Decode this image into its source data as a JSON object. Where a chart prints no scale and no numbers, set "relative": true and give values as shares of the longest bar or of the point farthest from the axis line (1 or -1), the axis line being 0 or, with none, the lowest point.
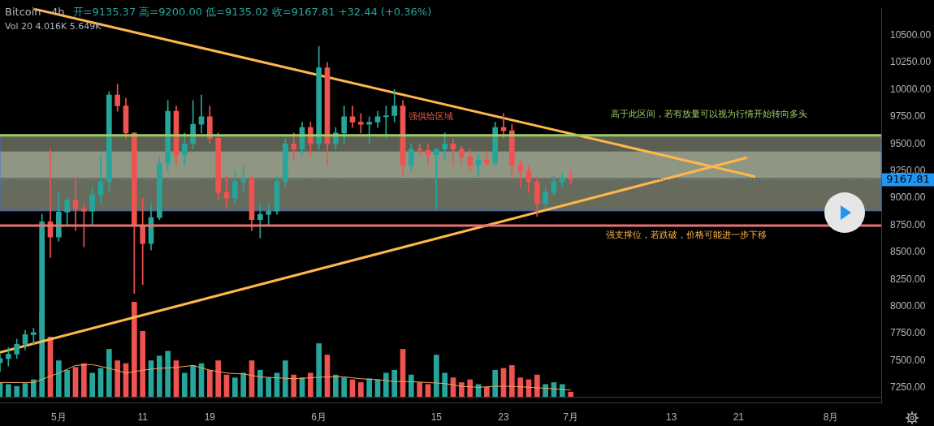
{
  "chart_data": [
    {
      "type": "candlestick",
      "title": "Bitcoin · 4h",
      "subtitle": "开=9135.37 高=9200.00 低=9135.02 收=9167.81 +32.44 (+0.36%)",
      "annotations": [
        "强供给区域",
        "高于此区间，若有放量可以视为行情开始转向多头",
        "强支撑位，若跌破，价格可能进一步下移"
      ],
      "x": [
        "--04-24",
        "--04-25",
        "--04-26",
        "--04-27",
        "--04-28",
        "--04-29",
        "--04-30",
        "--05-01",
        "--05-02",
        "--05-03",
        "--05-04",
        "--05-05",
        "--05-06",
        "--05-07",
        "--05-08",
        "--05-09",
        "--05-10",
        "--05-11",
        "--05-12",
        "--05-13",
        "--05-14",
        "--05-15",
        "--05-16",
        "--05-17",
        "--05-18",
        "--05-19",
        "--05-20",
        "--05-21",
        "--05-22",
        "--05-23",
        "--05-24",
        "--05-25",
        "--05-26",
        "--05-27",
        "--05-28",
        "--05-29",
        "--05-30",
        "--05-31",
        "--06-01",
        "--06-02",
        "--06-03",
        "--06-04",
        "--06-05",
        "--06-06",
        "--06-07",
        "--06-08",
        "--06-09",
        "--06-10",
        "--06-11",
        "--06-12",
        "--06-13",
        "--06-14",
        "--06-15",
        "--06-16",
        "--06-17",
        "--06-18",
        "--06-19",
        "--06-20",
        "--06-21",
        "--06-22",
        "--06-23",
        "--06-24",
        "--06-25",
        "--06-26",
        "--06-27",
        "--06-28",
        "--06-29",
        "--06-30",
        "--07-01"
      ],
      "series": [
        {
          "ohlc": [
            [
              7480,
              7560,
              7400,
              7520
            ],
            [
              7520,
              7620,
              7450,
              7560
            ],
            [
              7560,
              7700,
              7520,
              7650
            ],
            [
              7650,
              7780,
              7600,
              7740
            ],
            [
              7740,
              7800,
              7650,
              7760
            ],
            [
              7760,
              8850,
              7720,
              8780
            ],
            [
              8780,
              9450,
              8450,
              8640
            ],
            [
              8640,
              9050,
              8600,
              8870
            ],
            [
              8870,
              9000,
              8750,
              8980
            ],
            [
              8980,
              9200,
              8700,
              8900
            ],
            [
              8900,
              8950,
              8550,
              8880
            ],
            [
              8880,
              9100,
              8750,
              9030
            ],
            [
              9030,
              9400,
              8950,
              9150
            ],
            [
              9150,
              9980,
              9050,
              9950
            ],
            [
              9950,
              10050,
              9800,
              9850
            ],
            [
              9850,
              9920,
              9550,
              9600
            ],
            [
              9600,
              9600,
              8120,
              8750
            ],
            [
              8750,
              9000,
              8200,
              8580
            ],
            [
              8580,
              8950,
              8520,
              8820
            ],
            [
              8820,
              9380,
              8800,
              9320
            ],
            [
              9320,
              9900,
              9250,
              9800
            ],
            [
              9800,
              9850,
              9300,
              9400
            ],
            [
              9400,
              9600,
              9300,
              9500
            ],
            [
              9500,
              9900,
              9450,
              9680
            ],
            [
              9680,
              9950,
              9600,
              9750
            ],
            [
              9750,
              9850,
              9500,
              9550
            ],
            [
              9550,
              9600,
              8980,
              9050
            ],
            [
              9050,
              9200,
              8900,
              9000
            ],
            [
              9000,
              9250,
              8950,
              9150
            ],
            [
              9150,
              9300,
              9050,
              9180
            ],
            [
              9180,
              9200,
              8700,
              8800
            ],
            [
              8800,
              8950,
              8630,
              8850
            ],
            [
              8850,
              8950,
              8750,
              8880
            ],
            [
              8880,
              9200,
              8850,
              9150
            ],
            [
              9150,
              9550,
              9100,
              9500
            ],
            [
              9500,
              9600,
              9350,
              9450
            ],
            [
              9450,
              9700,
              9400,
              9650
            ],
            [
              9650,
              9700,
              9400,
              9500
            ],
            [
              9500,
              10400,
              9450,
              10200
            ],
            [
              10200,
              10250,
              9300,
              9500
            ],
            [
              9500,
              9650,
              9450,
              9600
            ],
            [
              9600,
              9850,
              9500,
              9750
            ],
            [
              9750,
              9850,
              9650,
              9700
            ],
            [
              9700,
              9780,
              9600,
              9680
            ],
            [
              9680,
              9750,
              9500,
              9700
            ],
            [
              9700,
              9800,
              9650,
              9750
            ],
            [
              9750,
              9850,
              9550,
              9760
            ],
            [
              9760,
              10000,
              9700,
              9850
            ],
            [
              9850,
              9900,
              9200,
              9300
            ],
            [
              9300,
              9500,
              9250,
              9450
            ],
            [
              9450,
              9500,
              9400,
              9440
            ],
            [
              9440,
              9500,
              9300,
              9400
            ],
            [
              9400,
              9450,
              8900,
              9450
            ],
            [
              9450,
              9600,
              9350,
              9500
            ],
            [
              9500,
              9550,
              9300,
              9450
            ],
            [
              9450,
              9480,
              9300,
              9380
            ],
            [
              9380,
              9450,
              9250,
              9300
            ],
            [
              9300,
              9400,
              9200,
              9350
            ],
            [
              9350,
              9420,
              9300,
              9320
            ],
            [
              9320,
              9700,
              9300,
              9650
            ],
            [
              9650,
              9780,
              9550,
              9620
            ],
            [
              9620,
              9680,
              9200,
              9300
            ],
            [
              9300,
              9350,
              9100,
              9250
            ],
            [
              9250,
              9300,
              9050,
              9150
            ],
            [
              9150,
              9200,
              8830,
              8950
            ],
            [
              8950,
              9100,
              8900,
              9050
            ],
            [
              9050,
              9200,
              9020,
              9150
            ],
            [
              9150,
              9220,
              9100,
              9180
            ],
            [
              9180,
              9260,
              9130,
              9167.81
            ]
          ],
          "colors": [
            "#26a69a",
            "#26a69a",
            "#26a69a",
            "#26a69a",
            "#26a69a",
            "#26a69a",
            "#ef5350",
            "#26a69a",
            "#26a69a",
            "#ef5350",
            "#ef5350",
            "#26a69a",
            "#26a69a",
            "#26a69a",
            "#ef5350",
            "#ef5350",
            "#ef5350",
            "#ef5350",
            "#26a69a",
            "#26a69a",
            "#26a69a",
            "#ef5350",
            "#26a69a",
            "#26a69a",
            "#26a69a",
            "#ef5350",
            "#ef5350",
            "#ef5350",
            "#26a69a",
            "#26a69a",
            "#ef5350",
            "#26a69a",
            "#26a69a",
            "#26a69a",
            "#26a69a",
            "#ef5350",
            "#26a69a",
            "#ef5350",
            "#26a69a",
            "#ef5350",
            "#26a69a",
            "#26a69a",
            "#ef5350",
            "#ef5350",
            "#26a69a",
            "#26a69a",
            "#26a69a",
            "#26a69a",
            "#ef5350",
            "#26a69a",
            "#ef5350",
            "#ef5350",
            "#26a69a",
            "#26a69a",
            "#ef5350",
            "#ef5350",
            "#ef5350",
            "#26a69a",
            "#ef5350",
            "#26a69a",
            "#ef5350",
            "#ef5350",
            "#ef5350",
            "#ef5350",
            "#ef5350",
            "#26a69a",
            "#26a69a",
            "#26a69a",
            "#ef5350"
          ]
        },
        {
          "type": "line",
          "color": "#ffb74d",
          "x": [
            "--04-28",
            "--07-23"
          ],
          "values": [
            10745,
            9197
          ]
        },
        {
          "type": "line",
          "color": "#ffb74d",
          "x": [
            "--04-24",
            "--07-22"
          ],
          "values": [
            7577,
            9373
          ]
        }
      ],
      "xlim": [
        "--04-24",
        "--08-07"
      ],
      "xticks": [
        {
          "value": "--05-01",
          "label": "5月"
        },
        {
          "value": "--05-11",
          "label": "11"
        },
        {
          "value": "--05-19",
          "label": "19"
        },
        {
          "value": "--06-01",
          "label": "6月"
        },
        {
          "value": "--06-15",
          "label": "15"
        },
        {
          "value": "--06-23",
          "label": "23"
        },
        {
          "value": "--07-01",
          "label": "7月"
        },
        {
          "value": "--07-13",
          "label": "13"
        },
        {
          "value": "--07-21",
          "label": "21"
        },
        {
          "value": "--08-01",
          "label": "8月"
        }
      ],
      "ylim": [
        7110,
        10750
      ],
      "yticks": [
        {
          "value": 7250,
          "label": "7250.00"
        },
        {
          "value": 7500,
          "label": "7500.00"
        },
        {
          "value": 7750,
          "label": "7750.00"
        },
        {
          "value": 8000,
          "label": "8000.00"
        },
        {
          "value": 8250,
          "label": "8250.00"
        },
        {
          "value": 8500,
          "label": "8500.00"
        },
        {
          "value": 8750,
          "label": "8750.00"
        },
        {
          "value": 9000,
          "label": "9000.00"
        },
        {
          "value": 9250,
          "label": "9250.00"
        },
        {
          "value": 9500,
          "label": "9500.00"
        },
        {
          "value": 9750,
          "label": "9750.00"
        },
        {
          "value": 10000,
          "label": "10000.00"
        },
        {
          "value": 10250,
          "label": "10250.00"
        },
        {
          "value": 10500,
          "label": "10500.00"
        }
      ],
      "ref_lines": [
        {
          "axis": "y",
          "value": 9578,
          "color": "#9ccc65"
        },
        {
          "axis": "y",
          "value": 8745,
          "color": "#e57373"
        },
        {
          "axis": "y",
          "value": 9167.81,
          "label": "9167.81",
          "color": "#2196f3",
          "line_style": "dotted"
        }
      ],
      "bands": [
        {
          "axis": "y",
          "from": 9190,
          "to": 9578,
          "color": "#a5ad95"
        },
        {
          "axis": "y",
          "from": 8882,
          "to": 9430,
          "color": "#b9c2a8"
        }
      ],
      "grid": false,
      "legend": false
    },
    {
      "type": "bar",
      "relative": true,
      "annotations": [
        "Vol 20 4.016K 5.649K"
      ],
      "x": [
        "--04-24",
        "--04-25",
        "--04-26",
        "--04-27",
        "--04-28",
        "--04-29",
        "--04-30",
        "--05-01",
        "--05-02",
        "--05-03",
        "--05-04",
        "--05-05",
        "--05-06",
        "--05-07",
        "--05-08",
        "--05-09",
        "--05-10",
        "--05-11",
        "--05-12",
        "--05-13",
        "--05-14",
        "--05-15",
        "--05-16",
        "--05-17",
        "--05-18",
        "--05-19",
        "--05-20",
        "--05-21",
        "--05-22",
        "--05-23",
        "--05-24",
        "--05-25",
        "--05-26",
        "--05-27",
        "--05-28",
        "--05-29",
        "--05-30",
        "--05-31",
        "--06-01",
        "--06-02",
        "--06-03",
        "--06-04",
        "--06-05",
        "--06-06",
        "--06-07",
        "--06-08",
        "--06-09",
        "--06-10",
        "--06-11",
        "--06-12",
        "--06-13",
        "--06-14",
        "--06-15",
        "--06-16",
        "--06-17",
        "--06-18",
        "--06-19",
        "--06-20",
        "--06-21",
        "--06-22",
        "--06-23",
        "--06-24",
        "--06-25",
        "--06-26",
        "--06-27",
        "--06-28",
        "--06-29",
        "--06-30",
        "--07-01"
      ],
      "xlim": [
        "--04-24",
        "--08-07"
      ],
      "series": [
        {
          "values": [
            0.15,
            0.13,
            0.11,
            0.14,
            0.18,
            0.88,
            0.63,
            0.38,
            0.28,
            0.31,
            0.35,
            0.25,
            0.3,
            0.5,
            0.38,
            0.35,
            1,
            0.69,
            0.38,
            0.43,
            0.48,
            0.38,
            0.25,
            0.33,
            0.35,
            0.28,
            0.38,
            0.23,
            0.2,
            0.25,
            0.38,
            0.28,
            0.2,
            0.25,
            0.38,
            0.23,
            0.2,
            0.25,
            0.56,
            0.44,
            0.23,
            0.2,
            0.18,
            0.15,
            0.19,
            0.18,
            0.25,
            0.28,
            0.5,
            0.23,
            0.15,
            0.13,
            0.44,
            0.25,
            0.2,
            0.15,
            0.18,
            0.13,
            0.1,
            0.28,
            0.3,
            0.33,
            0.2,
            0.18,
            0.23,
            0.13,
            0.15,
            0.13,
            0.05
          ],
          "colors": [
            "#26a69a",
            "#26a69a",
            "#26a69a",
            "#26a69a",
            "#26a69a",
            "#26a69a",
            "#ef5350",
            "#26a69a",
            "#26a69a",
            "#ef5350",
            "#ef5350",
            "#26a69a",
            "#26a69a",
            "#26a69a",
            "#ef5350",
            "#ef5350",
            "#ef5350",
            "#ef5350",
            "#26a69a",
            "#26a69a",
            "#26a69a",
            "#ef5350",
            "#26a69a",
            "#26a69a",
            "#26a69a",
            "#ef5350",
            "#ef5350",
            "#ef5350",
            "#26a69a",
            "#26a69a",
            "#ef5350",
            "#26a69a",
            "#26a69a",
            "#26a69a",
            "#26a69a",
            "#ef5350",
            "#26a69a",
            "#ef5350",
            "#26a69a",
            "#ef5350",
            "#26a69a",
            "#26a69a",
            "#ef5350",
            "#ef5350",
            "#26a69a",
            "#26a69a",
            "#26a69a",
            "#26a69a",
            "#ef5350",
            "#26a69a",
            "#ef5350",
            "#ef5350",
            "#26a69a",
            "#26a69a",
            "#ef5350",
            "#ef5350",
            "#ef5350",
            "#26a69a",
            "#ef5350",
            "#26a69a",
            "#ef5350",
            "#ef5350",
            "#ef5350",
            "#ef5350",
            "#ef5350",
            "#26a69a",
            "#26a69a",
            "#26a69a",
            "#ef5350"
          ]
        },
        {
          "type": "line",
          "color": "#f7a35c",
          "x": [
            "--04-24",
            "--04-28",
            "--05-01",
            "--05-03",
            "--05-05",
            "--05-07",
            "--05-09",
            "--05-11",
            "--05-13",
            "--05-15",
            "--05-17",
            "--05-19",
            "--05-21",
            "--05-23",
            "--05-25",
            "--05-27",
            "--05-29",
            "--05-31",
            "--06-02",
            "--06-04",
            "--06-06",
            "--06-08",
            "--06-10",
            "--06-12",
            "--06-14",
            "--06-16",
            "--06-18",
            "--06-20",
            "--06-22",
            "--06-24",
            "--06-26",
            "--06-28",
            "--07-01"
          ],
          "values": [
            0.15,
            0.15,
            0.25,
            0.33,
            0.34,
            0.3,
            0.25,
            0.28,
            0.3,
            0.31,
            0.33,
            0.28,
            0.25,
            0.24,
            0.21,
            0.2,
            0.19,
            0.2,
            0.21,
            0.21,
            0.19,
            0.18,
            0.16,
            0.16,
            0.15,
            0.14,
            0.11,
            0.1,
            0.11,
            0.11,
            0.1,
            0.09,
            0.07
          ]
        }
      ],
      "legend": false
    }
  ]
}
